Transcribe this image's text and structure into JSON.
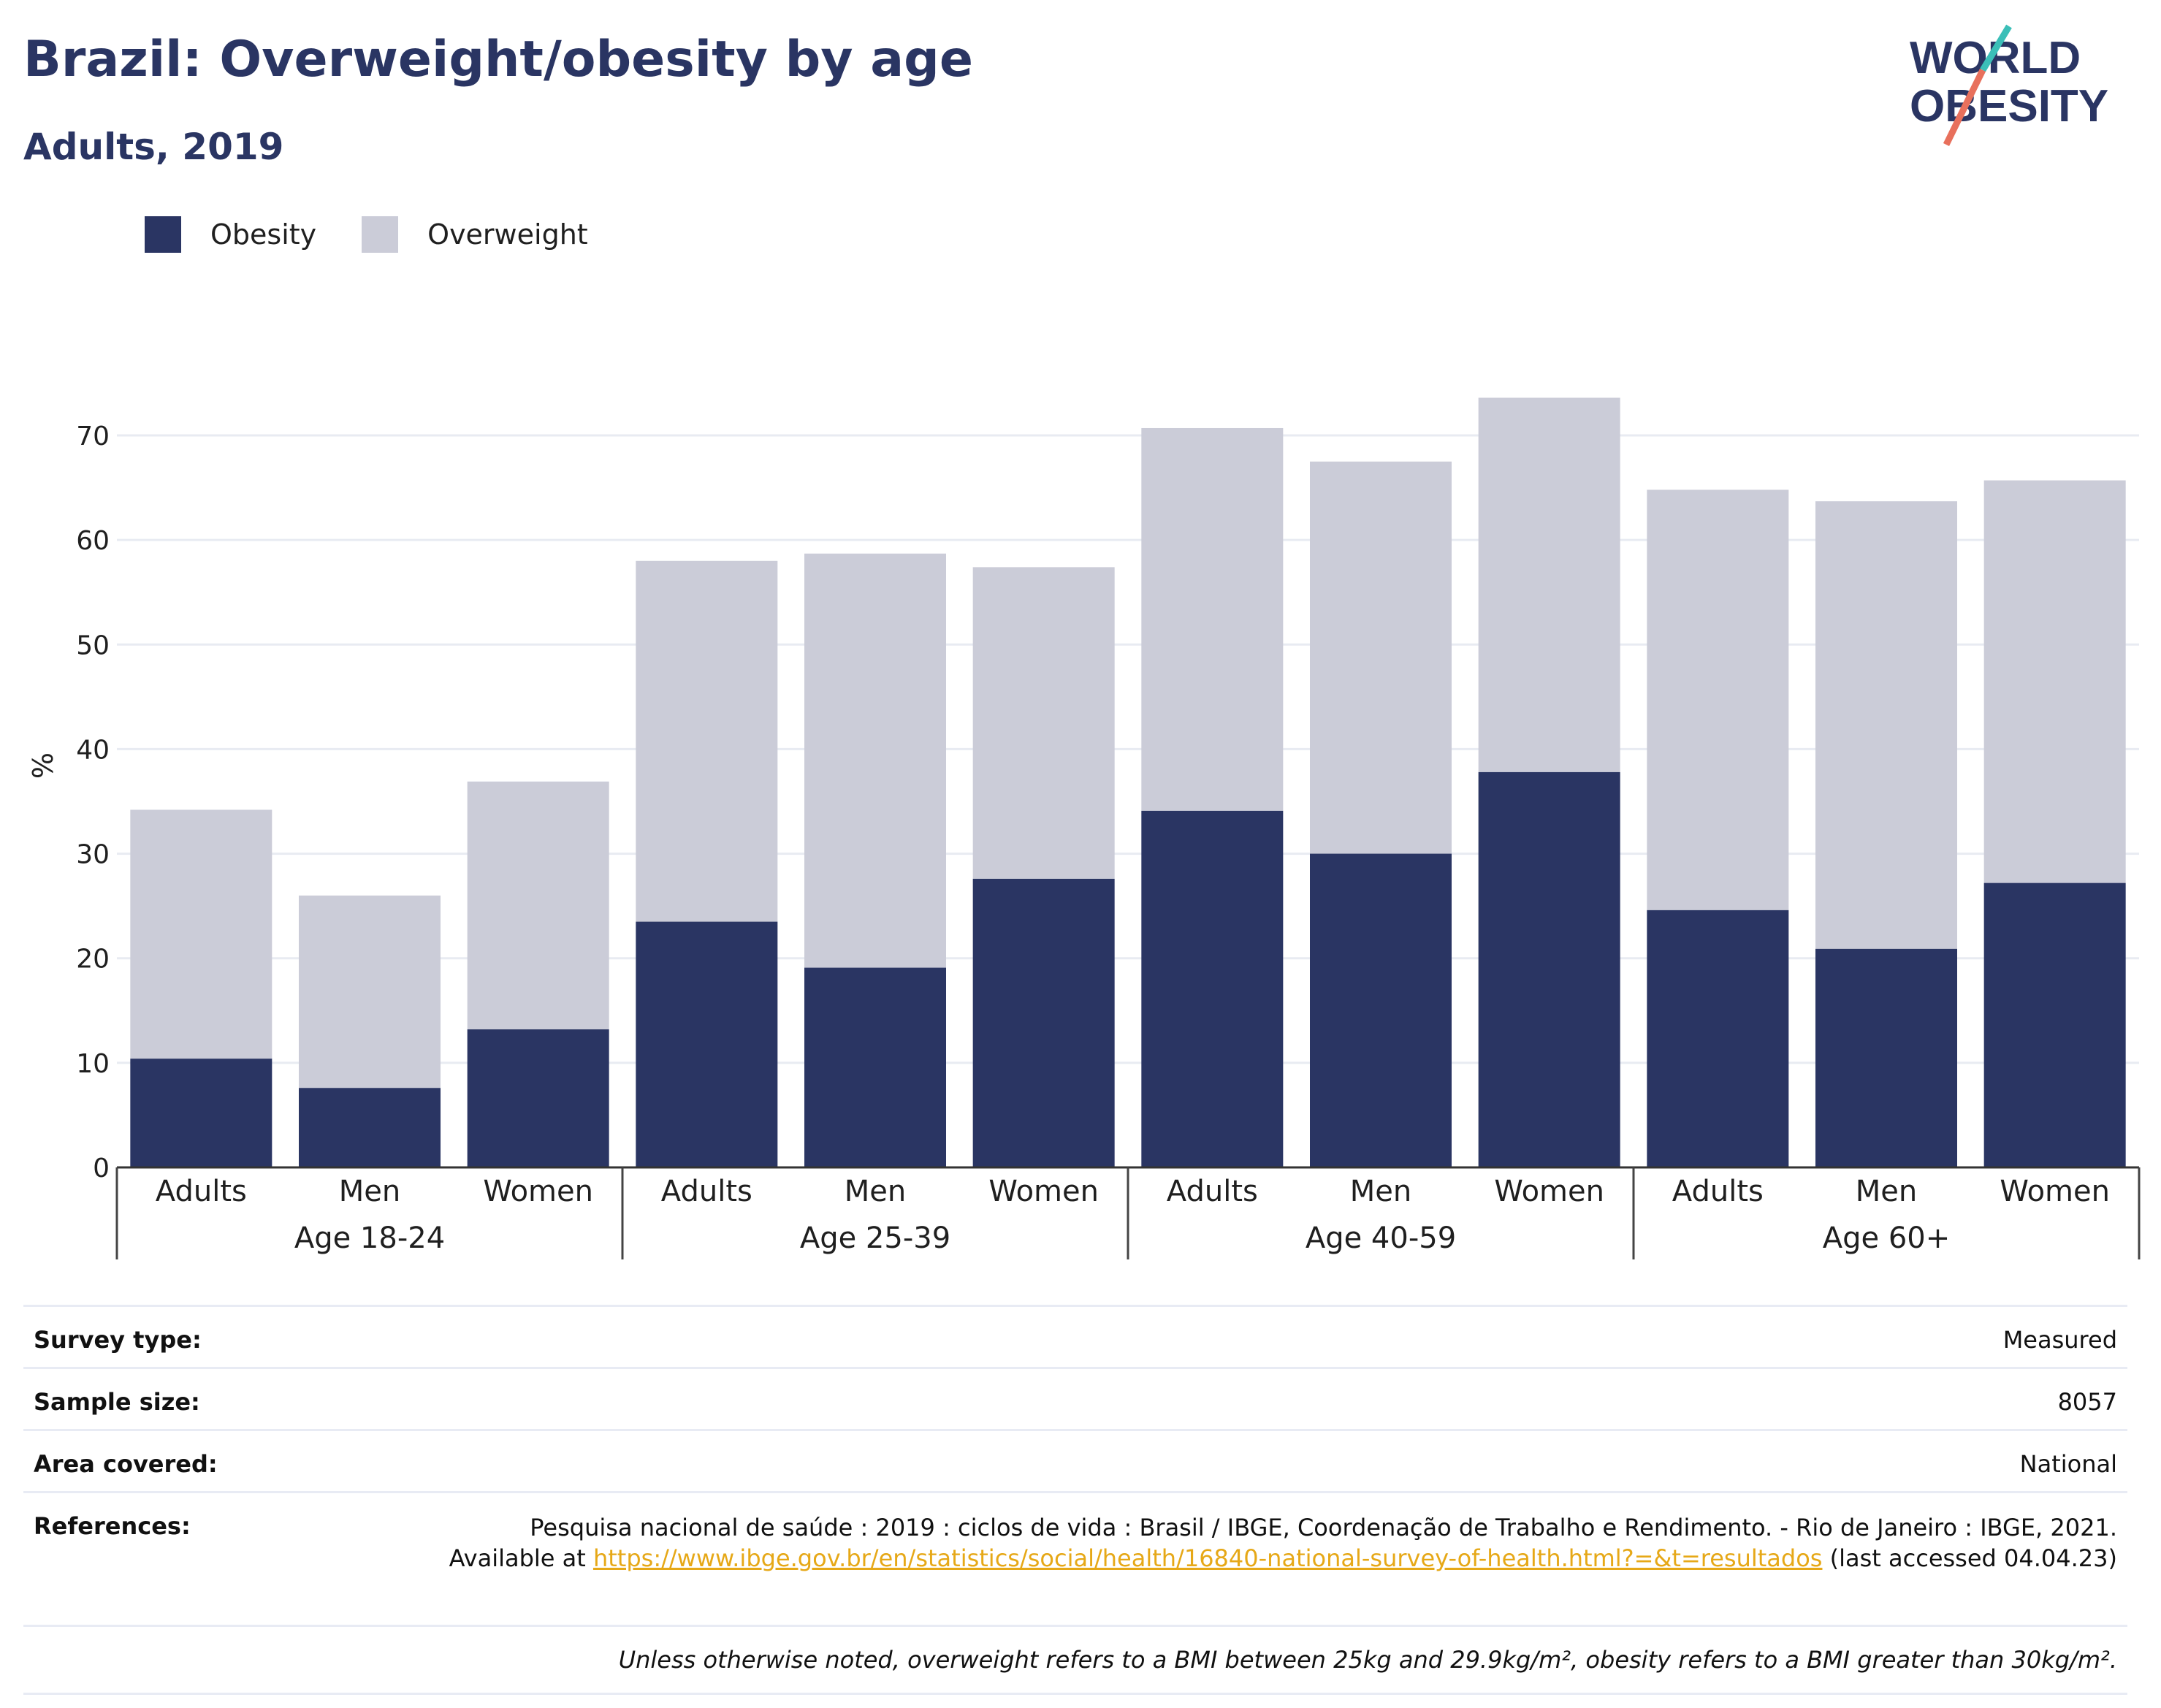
{
  "title": "Brazil: Overweight/obesity by age",
  "subtitle": "Adults, 2019",
  "logo": {
    "line1": "WORLD",
    "line2": "OBESITY"
  },
  "legend": [
    {
      "label": "Obesity",
      "color": "#2a3563"
    },
    {
      "label": "Overweight",
      "color": "#cbccd8"
    }
  ],
  "chart_data": {
    "type": "bar",
    "stacked": true,
    "ylabel": "%",
    "ylim": [
      0,
      75
    ],
    "yticks": [
      0,
      10,
      20,
      30,
      40,
      50,
      60,
      70
    ],
    "grid": true,
    "legend_position": "top-left",
    "groups": [
      {
        "label": "Age 18-24",
        "categories": [
          "Adults",
          "Men",
          "Women"
        ]
      },
      {
        "label": "Age 25-39",
        "categories": [
          "Adults",
          "Men",
          "Women"
        ]
      },
      {
        "label": "Age 40-59",
        "categories": [
          "Adults",
          "Men",
          "Women"
        ]
      },
      {
        "label": "Age 60+",
        "categories": [
          "Adults",
          "Men",
          "Women"
        ]
      }
    ],
    "categories": [
      "Adults",
      "Men",
      "Women",
      "Adults",
      "Men",
      "Women",
      "Adults",
      "Men",
      "Women",
      "Adults",
      "Men",
      "Women"
    ],
    "series": [
      {
        "name": "Obesity",
        "color": "#2a3563",
        "values": [
          10.4,
          7.6,
          13.2,
          23.5,
          19.1,
          27.6,
          34.1,
          30.0,
          37.8,
          24.6,
          20.9,
          27.2
        ]
      },
      {
        "name": "Overweight",
        "color": "#cbccd8",
        "values": [
          23.8,
          18.4,
          23.7,
          34.5,
          39.6,
          29.8,
          36.6,
          37.5,
          35.8,
          40.2,
          42.8,
          38.5
        ]
      }
    ]
  },
  "info": {
    "survey_type": {
      "label": "Survey type:",
      "value": "Measured"
    },
    "sample_size": {
      "label": "Sample size:",
      "value": "8057"
    },
    "area_covered": {
      "label": "Area covered:",
      "value": "National"
    },
    "references": {
      "label": "References:",
      "text1": "Pesquisa nacional de saúde : 2019 : ciclos de vida : Brasil / IBGE, Coordenação de Trabalho e Rendimento. - Rio de Janeiro : IBGE, 2021.",
      "text2": "Available at",
      "link": "https://www.ibge.gov.br/en/statistics/social/health/16840-national-survey-of-health.html?=&t=resultados",
      "text3": "(last accessed 04.04.23)"
    },
    "note": "Unless otherwise noted, overweight refers to a BMI between 25kg and 29.9kg/m², obesity refers to a BMI greater than 30kg/m²."
  }
}
